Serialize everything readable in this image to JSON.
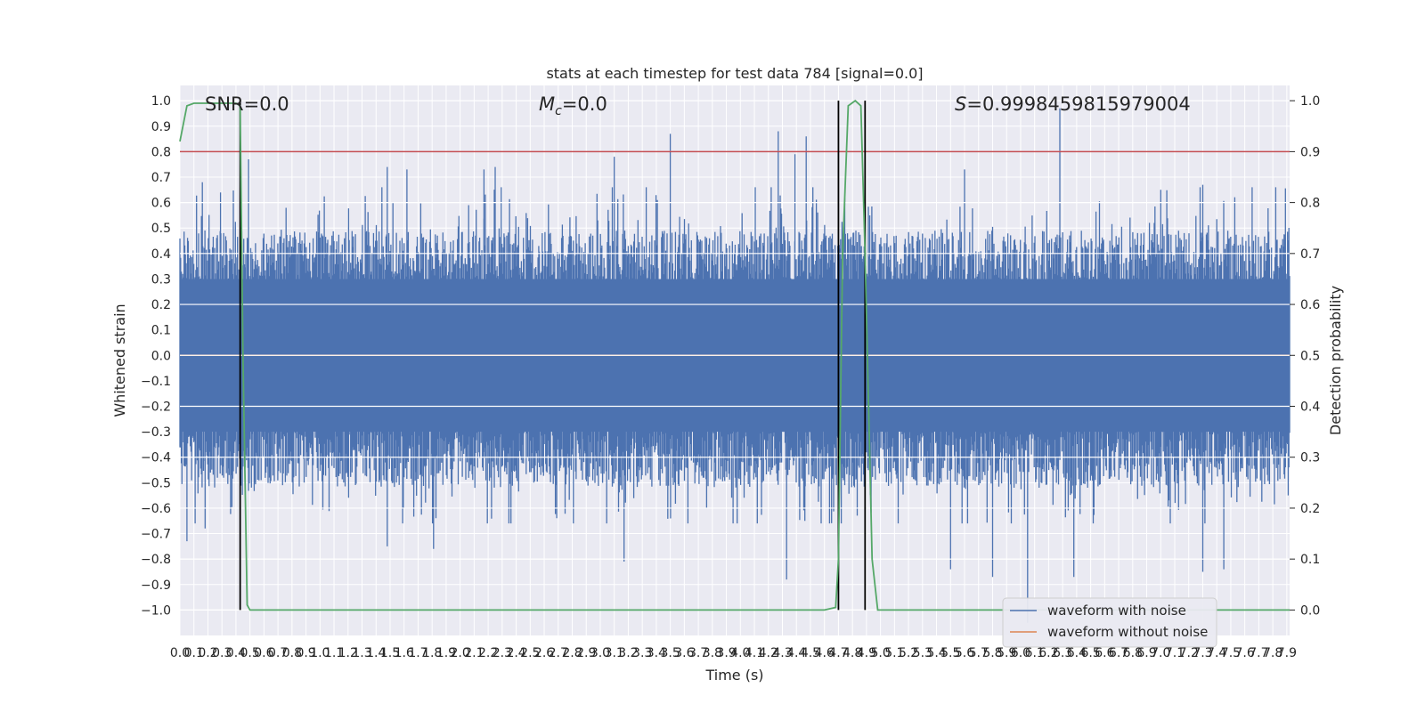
{
  "chart_data": {
    "type": "line",
    "title": "stats at each timestep for test data 784 [signal=0.0]",
    "xlabel": "Time (s)",
    "ylabel_left": "Whitened strain",
    "ylabel_right": "Detection probability",
    "xlim": [
      0,
      7.92
    ],
    "ylim_left": [
      -1.1,
      1.06
    ],
    "ylim_right": [
      -0.05,
      1.03
    ],
    "x_ticks": [
      "0.0",
      "0.1",
      "0.2",
      "0.3",
      "0.4",
      "0.5",
      "0.6",
      "0.7",
      "0.8",
      "0.9",
      "1.0",
      "1.1",
      "1.2",
      "1.3",
      "1.4",
      "1.5",
      "1.6",
      "1.7",
      "1.8",
      "1.9",
      "2.0",
      "2.1",
      "2.2",
      "2.3",
      "2.4",
      "2.5",
      "2.6",
      "2.7",
      "2.8",
      "2.9",
      "3.0",
      "3.1",
      "3.2",
      "3.3",
      "3.4",
      "3.5",
      "3.6",
      "3.7",
      "3.8",
      "3.9",
      "4.0",
      "4.1",
      "4.2",
      "4.3",
      "4.4",
      "4.5",
      "4.6",
      "4.7",
      "4.8",
      "4.9",
      "5.0",
      "5.1",
      "5.2",
      "5.3",
      "5.4",
      "5.5",
      "5.6",
      "5.7",
      "5.8",
      "5.9",
      "6.0",
      "6.1",
      "6.2",
      "6.3",
      "6.4",
      "6.5",
      "6.6",
      "6.7",
      "6.8",
      "6.9",
      "7.0",
      "7.1",
      "7.2",
      "7.3",
      "7.4",
      "7.5",
      "7.6",
      "7.7",
      "7.8",
      "7.9"
    ],
    "y_ticks_left": [
      "−1.0",
      "−0.9",
      "−0.8",
      "−0.7",
      "−0.6",
      "−0.5",
      "−0.4",
      "−0.3",
      "−0.2",
      "−0.1",
      "0.0",
      "0.1",
      "0.2",
      "0.3",
      "0.4",
      "0.5",
      "0.6",
      "0.7",
      "0.8",
      "0.9",
      "1.0"
    ],
    "y_ticks_right": [
      "0.0",
      "0.1",
      "0.2",
      "0.3",
      "0.4",
      "0.5",
      "0.6",
      "0.7",
      "0.8",
      "0.9",
      "1.0"
    ],
    "annotations": {
      "snr": "SNR=0.0",
      "mc_symbol": "M",
      "mc_sub": "c",
      "mc_value": "=0.0",
      "s_symbol": "S",
      "s_value": "=0.9998459815979004"
    },
    "series": [
      {
        "name": "waveform with noise",
        "color": "#4c72b0",
        "axis": "left",
        "description_values": {
          "typical_band": [
            -0.4,
            0.37
          ],
          "max": 0.97,
          "min": -1.05
        },
        "peaks_x": [
          0.16,
          0.29,
          0.49,
          1.48,
          1.62,
          2.17,
          2.25,
          3.1,
          3.5,
          4.27,
          4.39,
          4.47,
          5.6,
          6.28,
          7.0,
          7.3
        ],
        "peaks_y": [
          0.68,
          0.64,
          0.77,
          0.74,
          0.73,
          0.73,
          0.74,
          0.78,
          0.87,
          0.88,
          0.79,
          0.86,
          0.73,
          0.97,
          0.65,
          0.67
        ],
        "troughs_x": [
          0.05,
          0.18,
          1.48,
          1.81,
          3.17,
          4.33,
          4.46,
          5.5,
          5.8,
          6.05,
          6.38,
          7.3,
          7.45
        ],
        "troughs_y": [
          -0.73,
          -0.68,
          -0.75,
          -0.76,
          -0.81,
          -0.88,
          -0.65,
          -0.84,
          -0.87,
          -1.05,
          -0.87,
          -0.85,
          -0.84
        ]
      },
      {
        "name": "waveform without noise",
        "color": "#dd8452",
        "axis": "left",
        "x": [
          0,
          7.92
        ],
        "y": [
          0,
          0
        ]
      },
      {
        "color": "#55a868",
        "axis": "right",
        "x": [
          0,
          0.05,
          0.1,
          0.2,
          0.3,
          0.4,
          0.43,
          0.45,
          0.48,
          0.5,
          0.6,
          1.0,
          2.0,
          3.0,
          4.0,
          4.6,
          4.68,
          4.7,
          4.73,
          4.77,
          4.82,
          4.86,
          4.89,
          4.94,
          4.98,
          5.0,
          7.92
        ],
        "y": [
          0.92,
          0.99,
          0.995,
          0.995,
          0.995,
          0.995,
          0.99,
          0.5,
          0.01,
          0.0,
          0.0,
          0.0,
          0.0,
          0.0,
          0.0,
          0.0,
          0.005,
          0.1,
          0.7,
          0.99,
          1.0,
          0.99,
          0.7,
          0.1,
          0.0,
          0.0,
          0.0
        ]
      }
    ],
    "threshold": {
      "color": "#c44e52",
      "axis": "right",
      "y": 0.9
    },
    "markers": {
      "color": "#000000",
      "x": [
        0.43,
        4.7,
        4.89
      ],
      "y_top": 1.0,
      "y_bottom": 0.0
    },
    "grid": true,
    "legend": {
      "placement": "lower-right"
    },
    "background": "#eaeaf2"
  }
}
